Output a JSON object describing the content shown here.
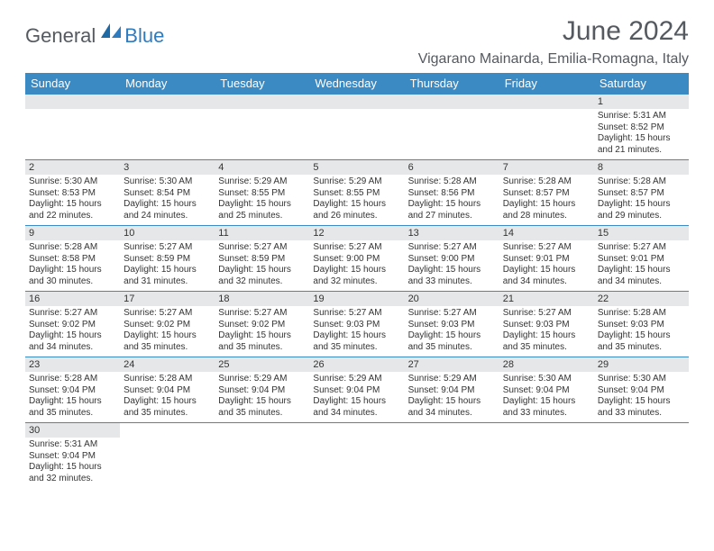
{
  "logo": {
    "text1": "General",
    "text2": "Blue"
  },
  "title": "June 2024",
  "subtitle": "Vigarano Mainarda, Emilia-Romagna, Italy",
  "colors": {
    "header_bg": "#3b8ac4",
    "header_text": "#ffffff",
    "daynum_bg": "#e6e7e8",
    "row_border": "#3b8ac4",
    "title_color": "#555a61",
    "logo_gray": "#555a61",
    "logo_blue": "#2f7bbf"
  },
  "typography": {
    "title_fontsize": 30,
    "subtitle_fontsize": 16,
    "dayhead_fontsize": 13,
    "daynum_fontsize": 11,
    "body_fontsize": 10
  },
  "weekdays": [
    "Sunday",
    "Monday",
    "Tuesday",
    "Wednesday",
    "Thursday",
    "Friday",
    "Saturday"
  ],
  "weeks": [
    [
      null,
      null,
      null,
      null,
      null,
      null,
      {
        "n": "1",
        "sr": "Sunrise: 5:31 AM",
        "ss": "Sunset: 8:52 PM",
        "dl": "Daylight: 15 hours and 21 minutes."
      }
    ],
    [
      {
        "n": "2",
        "sr": "Sunrise: 5:30 AM",
        "ss": "Sunset: 8:53 PM",
        "dl": "Daylight: 15 hours and 22 minutes."
      },
      {
        "n": "3",
        "sr": "Sunrise: 5:30 AM",
        "ss": "Sunset: 8:54 PM",
        "dl": "Daylight: 15 hours and 24 minutes."
      },
      {
        "n": "4",
        "sr": "Sunrise: 5:29 AM",
        "ss": "Sunset: 8:55 PM",
        "dl": "Daylight: 15 hours and 25 minutes."
      },
      {
        "n": "5",
        "sr": "Sunrise: 5:29 AM",
        "ss": "Sunset: 8:55 PM",
        "dl": "Daylight: 15 hours and 26 minutes."
      },
      {
        "n": "6",
        "sr": "Sunrise: 5:28 AM",
        "ss": "Sunset: 8:56 PM",
        "dl": "Daylight: 15 hours and 27 minutes."
      },
      {
        "n": "7",
        "sr": "Sunrise: 5:28 AM",
        "ss": "Sunset: 8:57 PM",
        "dl": "Daylight: 15 hours and 28 minutes."
      },
      {
        "n": "8",
        "sr": "Sunrise: 5:28 AM",
        "ss": "Sunset: 8:57 PM",
        "dl": "Daylight: 15 hours and 29 minutes."
      }
    ],
    [
      {
        "n": "9",
        "sr": "Sunrise: 5:28 AM",
        "ss": "Sunset: 8:58 PM",
        "dl": "Daylight: 15 hours and 30 minutes."
      },
      {
        "n": "10",
        "sr": "Sunrise: 5:27 AM",
        "ss": "Sunset: 8:59 PM",
        "dl": "Daylight: 15 hours and 31 minutes."
      },
      {
        "n": "11",
        "sr": "Sunrise: 5:27 AM",
        "ss": "Sunset: 8:59 PM",
        "dl": "Daylight: 15 hours and 32 minutes."
      },
      {
        "n": "12",
        "sr": "Sunrise: 5:27 AM",
        "ss": "Sunset: 9:00 PM",
        "dl": "Daylight: 15 hours and 32 minutes."
      },
      {
        "n": "13",
        "sr": "Sunrise: 5:27 AM",
        "ss": "Sunset: 9:00 PM",
        "dl": "Daylight: 15 hours and 33 minutes."
      },
      {
        "n": "14",
        "sr": "Sunrise: 5:27 AM",
        "ss": "Sunset: 9:01 PM",
        "dl": "Daylight: 15 hours and 34 minutes."
      },
      {
        "n": "15",
        "sr": "Sunrise: 5:27 AM",
        "ss": "Sunset: 9:01 PM",
        "dl": "Daylight: 15 hours and 34 minutes."
      }
    ],
    [
      {
        "n": "16",
        "sr": "Sunrise: 5:27 AM",
        "ss": "Sunset: 9:02 PM",
        "dl": "Daylight: 15 hours and 34 minutes."
      },
      {
        "n": "17",
        "sr": "Sunrise: 5:27 AM",
        "ss": "Sunset: 9:02 PM",
        "dl": "Daylight: 15 hours and 35 minutes."
      },
      {
        "n": "18",
        "sr": "Sunrise: 5:27 AM",
        "ss": "Sunset: 9:02 PM",
        "dl": "Daylight: 15 hours and 35 minutes."
      },
      {
        "n": "19",
        "sr": "Sunrise: 5:27 AM",
        "ss": "Sunset: 9:03 PM",
        "dl": "Daylight: 15 hours and 35 minutes."
      },
      {
        "n": "20",
        "sr": "Sunrise: 5:27 AM",
        "ss": "Sunset: 9:03 PM",
        "dl": "Daylight: 15 hours and 35 minutes."
      },
      {
        "n": "21",
        "sr": "Sunrise: 5:27 AM",
        "ss": "Sunset: 9:03 PM",
        "dl": "Daylight: 15 hours and 35 minutes."
      },
      {
        "n": "22",
        "sr": "Sunrise: 5:28 AM",
        "ss": "Sunset: 9:03 PM",
        "dl": "Daylight: 15 hours and 35 minutes."
      }
    ],
    [
      {
        "n": "23",
        "sr": "Sunrise: 5:28 AM",
        "ss": "Sunset: 9:04 PM",
        "dl": "Daylight: 15 hours and 35 minutes."
      },
      {
        "n": "24",
        "sr": "Sunrise: 5:28 AM",
        "ss": "Sunset: 9:04 PM",
        "dl": "Daylight: 15 hours and 35 minutes."
      },
      {
        "n": "25",
        "sr": "Sunrise: 5:29 AM",
        "ss": "Sunset: 9:04 PM",
        "dl": "Daylight: 15 hours and 35 minutes."
      },
      {
        "n": "26",
        "sr": "Sunrise: 5:29 AM",
        "ss": "Sunset: 9:04 PM",
        "dl": "Daylight: 15 hours and 34 minutes."
      },
      {
        "n": "27",
        "sr": "Sunrise: 5:29 AM",
        "ss": "Sunset: 9:04 PM",
        "dl": "Daylight: 15 hours and 34 minutes."
      },
      {
        "n": "28",
        "sr": "Sunrise: 5:30 AM",
        "ss": "Sunset: 9:04 PM",
        "dl": "Daylight: 15 hours and 33 minutes."
      },
      {
        "n": "29",
        "sr": "Sunrise: 5:30 AM",
        "ss": "Sunset: 9:04 PM",
        "dl": "Daylight: 15 hours and 33 minutes."
      }
    ],
    [
      {
        "n": "30",
        "sr": "Sunrise: 5:31 AM",
        "ss": "Sunset: 9:04 PM",
        "dl": "Daylight: 15 hours and 32 minutes."
      },
      null,
      null,
      null,
      null,
      null,
      null
    ]
  ]
}
